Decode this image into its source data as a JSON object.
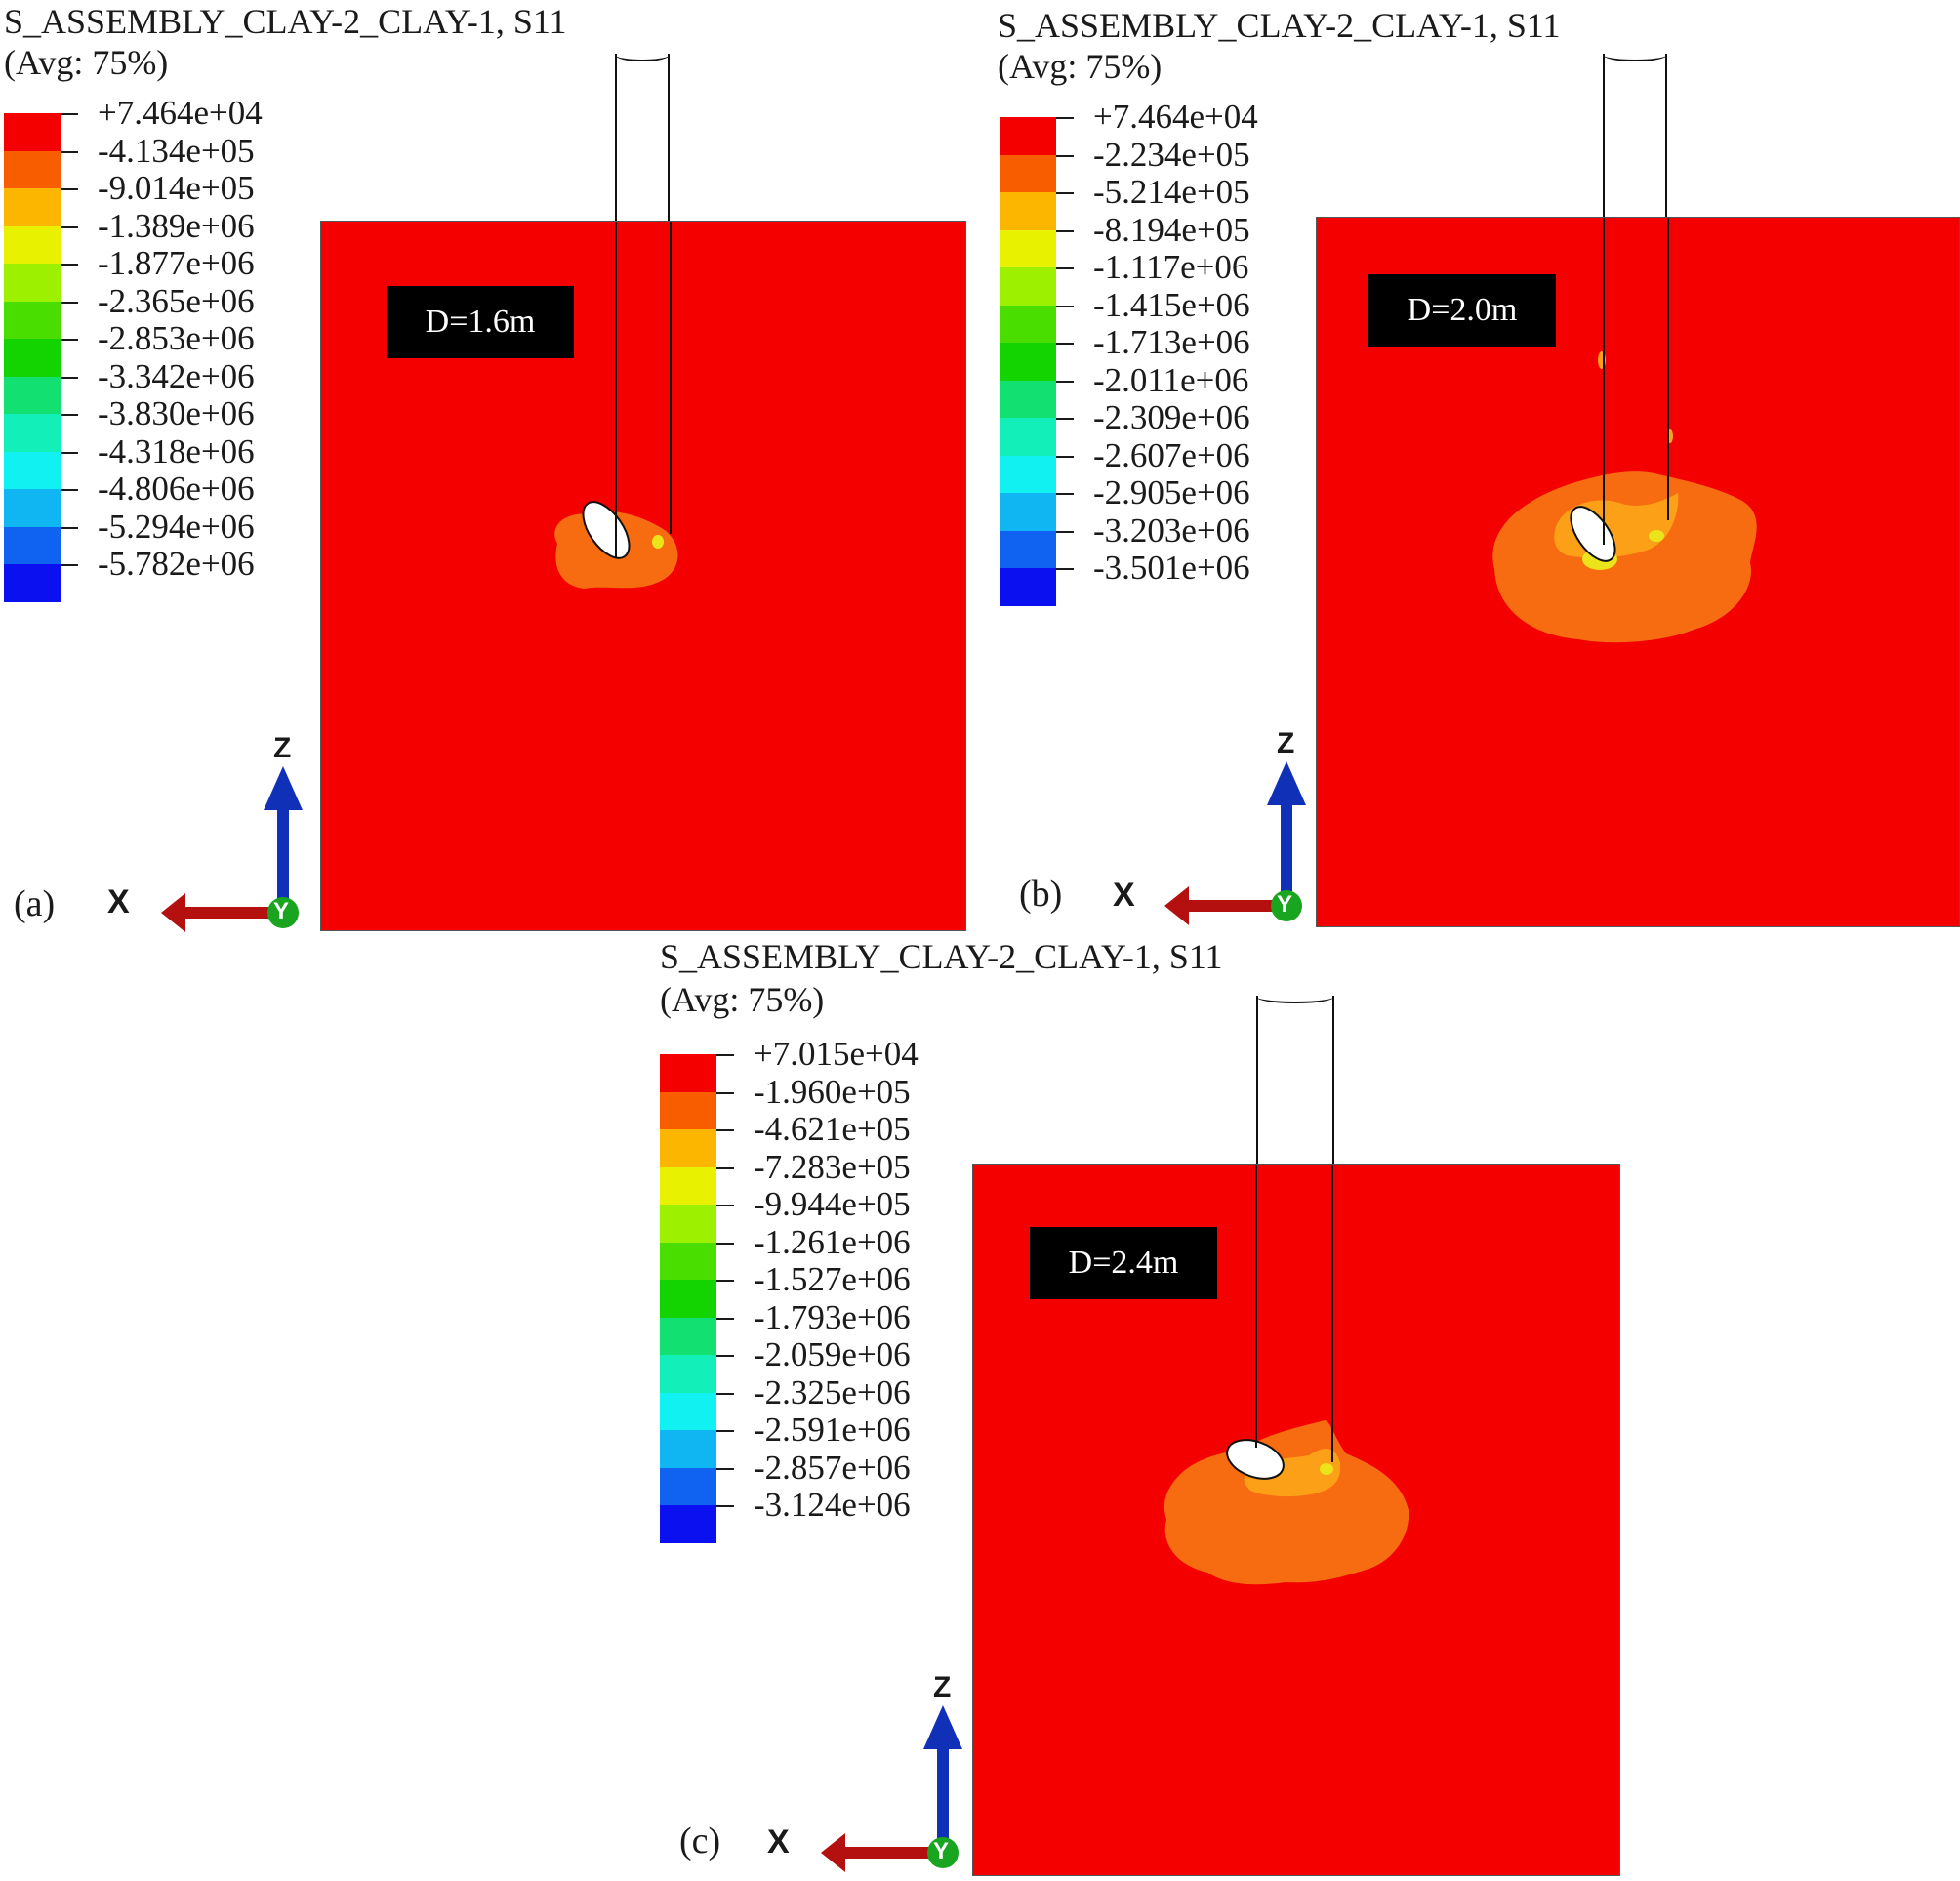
{
  "panels": [
    {
      "id": "a",
      "title": "S_ASSEMBLY_CLAY-2_CLAY-1, S11",
      "avg": "(Avg: 75%)",
      "legend": [
        "+7.464e+04",
        "-4.134e+05",
        "-9.014e+05",
        "-1.389e+06",
        "-1.877e+06",
        "-2.365e+06",
        "-2.853e+06",
        "-3.342e+06",
        "-3.830e+06",
        "-4.318e+06",
        "-4.806e+06",
        "-5.294e+06",
        "-5.782e+06"
      ],
      "diameter_label": "D=1.6m",
      "sub_label": "(a)",
      "axis": {
        "x": "X",
        "y": "Y",
        "z": "Z"
      }
    },
    {
      "id": "b",
      "title": "S_ASSEMBLY_CLAY-2_CLAY-1, S11",
      "avg": "(Avg: 75%)",
      "legend": [
        "+7.464e+04",
        "-2.234e+05",
        "-5.214e+05",
        "-8.194e+05",
        "-1.117e+06",
        "-1.415e+06",
        "-1.713e+06",
        "-2.011e+06",
        "-2.309e+06",
        "-2.607e+06",
        "-2.905e+06",
        "-3.203e+06",
        "-3.501e+06"
      ],
      "diameter_label": "D=2.0m",
      "sub_label": "(b)",
      "axis": {
        "x": "X",
        "y": "Y",
        "z": "Z"
      }
    },
    {
      "id": "c",
      "title": "S_ASSEMBLY_CLAY-2_CLAY-1, S11",
      "avg": "(Avg: 75%)",
      "legend": [
        "+7.015e+04",
        "-1.960e+05",
        "-4.621e+05",
        "-7.283e+05",
        "-9.944e+05",
        "-1.261e+06",
        "-1.527e+06",
        "-1.793e+06",
        "-2.059e+06",
        "-2.325e+06",
        "-2.591e+06",
        "-2.857e+06",
        "-3.124e+06"
      ],
      "diameter_label": "D=2.4m",
      "sub_label": "(c)",
      "axis": {
        "x": "X",
        "y": "Y",
        "z": "Z"
      }
    }
  ],
  "legend_colors": [
    "#f40000",
    "#f85e00",
    "#fdb600",
    "#e8f200",
    "#9cf000",
    "#4ade00",
    "#14d400",
    "#12e070",
    "#12efb8",
    "#12f1f1",
    "#10b6f1",
    "#1062f0",
    "#0a10f0"
  ],
  "colors": {
    "field": "#f40000",
    "stress_outer": "#f76c10",
    "stress_inner": "#fca018",
    "stress_core": "#ece41a",
    "x_axis": "#b51010",
    "z_axis": "#1030b8",
    "origin": "#19a520"
  }
}
